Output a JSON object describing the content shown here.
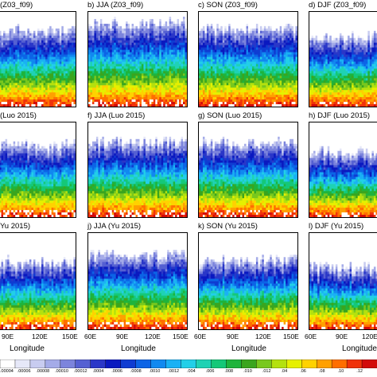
{
  "chart_data": {
    "type": "heatmap",
    "description_colormap": [
      "#ffffff",
      "#e6e8f8",
      "#c8ccf0",
      "#a4abe8",
      "#7c84dc",
      "#5560d2",
      "#2a37c8",
      "#0a19c0",
      "#0f3cd2",
      "#0c64e6",
      "#1189f0",
      "#1ab1f4",
      "#22cfe8",
      "#1fd2b4",
      "#15c878",
      "#1eb43c",
      "#3aa51e",
      "#78c81e",
      "#b4e10f",
      "#e6f000",
      "#ffd200",
      "#ffa000",
      "#ff6e00",
      "#f0320a",
      "#d20a0a"
    ],
    "x_tick_labels_bottom_row": [
      {
        "panel": "i",
        "labels": [
          "90E",
          "120E",
          "150E"
        ]
      },
      {
        "panel": "j",
        "labels": [
          "60E",
          "90E",
          "120E",
          "150E"
        ]
      },
      {
        "panel": "k",
        "labels": [
          "60E",
          "90E",
          "120E",
          "150E"
        ]
      },
      {
        "panel": "l",
        "labels": [
          "60E",
          "90E",
          "120E"
        ]
      }
    ],
    "xlabel": "Longitude",
    "colorbar_labels": [
      ".00004",
      ".00006",
      ".00008",
      ".00010",
      ".00012",
      ".0004",
      ".0006",
      ".0008",
      ".0010",
      ".0012",
      ".004",
      ".006",
      ".008",
      ".010",
      ".012",
      ".04",
      ".06",
      ".08",
      ".10",
      ".12"
    ],
    "panels": [
      {
        "id": "a",
        "title": "(Z03_f09)",
        "top_level": 0.78,
        "low_level": 0.18
      },
      {
        "id": "b",
        "title": "b) JJA  (Z03_f09)",
        "top_level": 0.86,
        "low_level": 0.22
      },
      {
        "id": "c",
        "title": "c) SON  (Z03_f09)",
        "top_level": 0.8,
        "low_level": 0.2
      },
      {
        "id": "d",
        "title": "d) DJF  (Z03_f09)",
        "top_level": 0.72,
        "low_level": 0.16
      },
      {
        "id": "e",
        "title": "(Luo 2015)",
        "top_level": 0.74,
        "low_level": 0.24
      },
      {
        "id": "f",
        "title": "f) JJA  (Luo 2015)",
        "top_level": 0.78,
        "low_level": 0.26
      },
      {
        "id": "g",
        "title": "g) SON  (Luo 2015)",
        "top_level": 0.76,
        "low_level": 0.22
      },
      {
        "id": "h",
        "title": "h) DJF  (Luo 2015)",
        "top_level": 0.66,
        "low_level": 0.2
      },
      {
        "id": "i",
        "title": "Yu 2015)",
        "top_level": 0.68,
        "low_level": 0.24
      },
      {
        "id": "j",
        "title": "j) JJA  (Yu 2015)",
        "top_level": 0.76,
        "low_level": 0.26
      },
      {
        "id": "k",
        "title": "k) SON  (Yu 2015)",
        "top_level": 0.7,
        "low_level": 0.22
      },
      {
        "id": "l",
        "title": "l) DJF  (Yu 2015)",
        "top_level": 0.62,
        "low_level": 0.18
      }
    ]
  }
}
